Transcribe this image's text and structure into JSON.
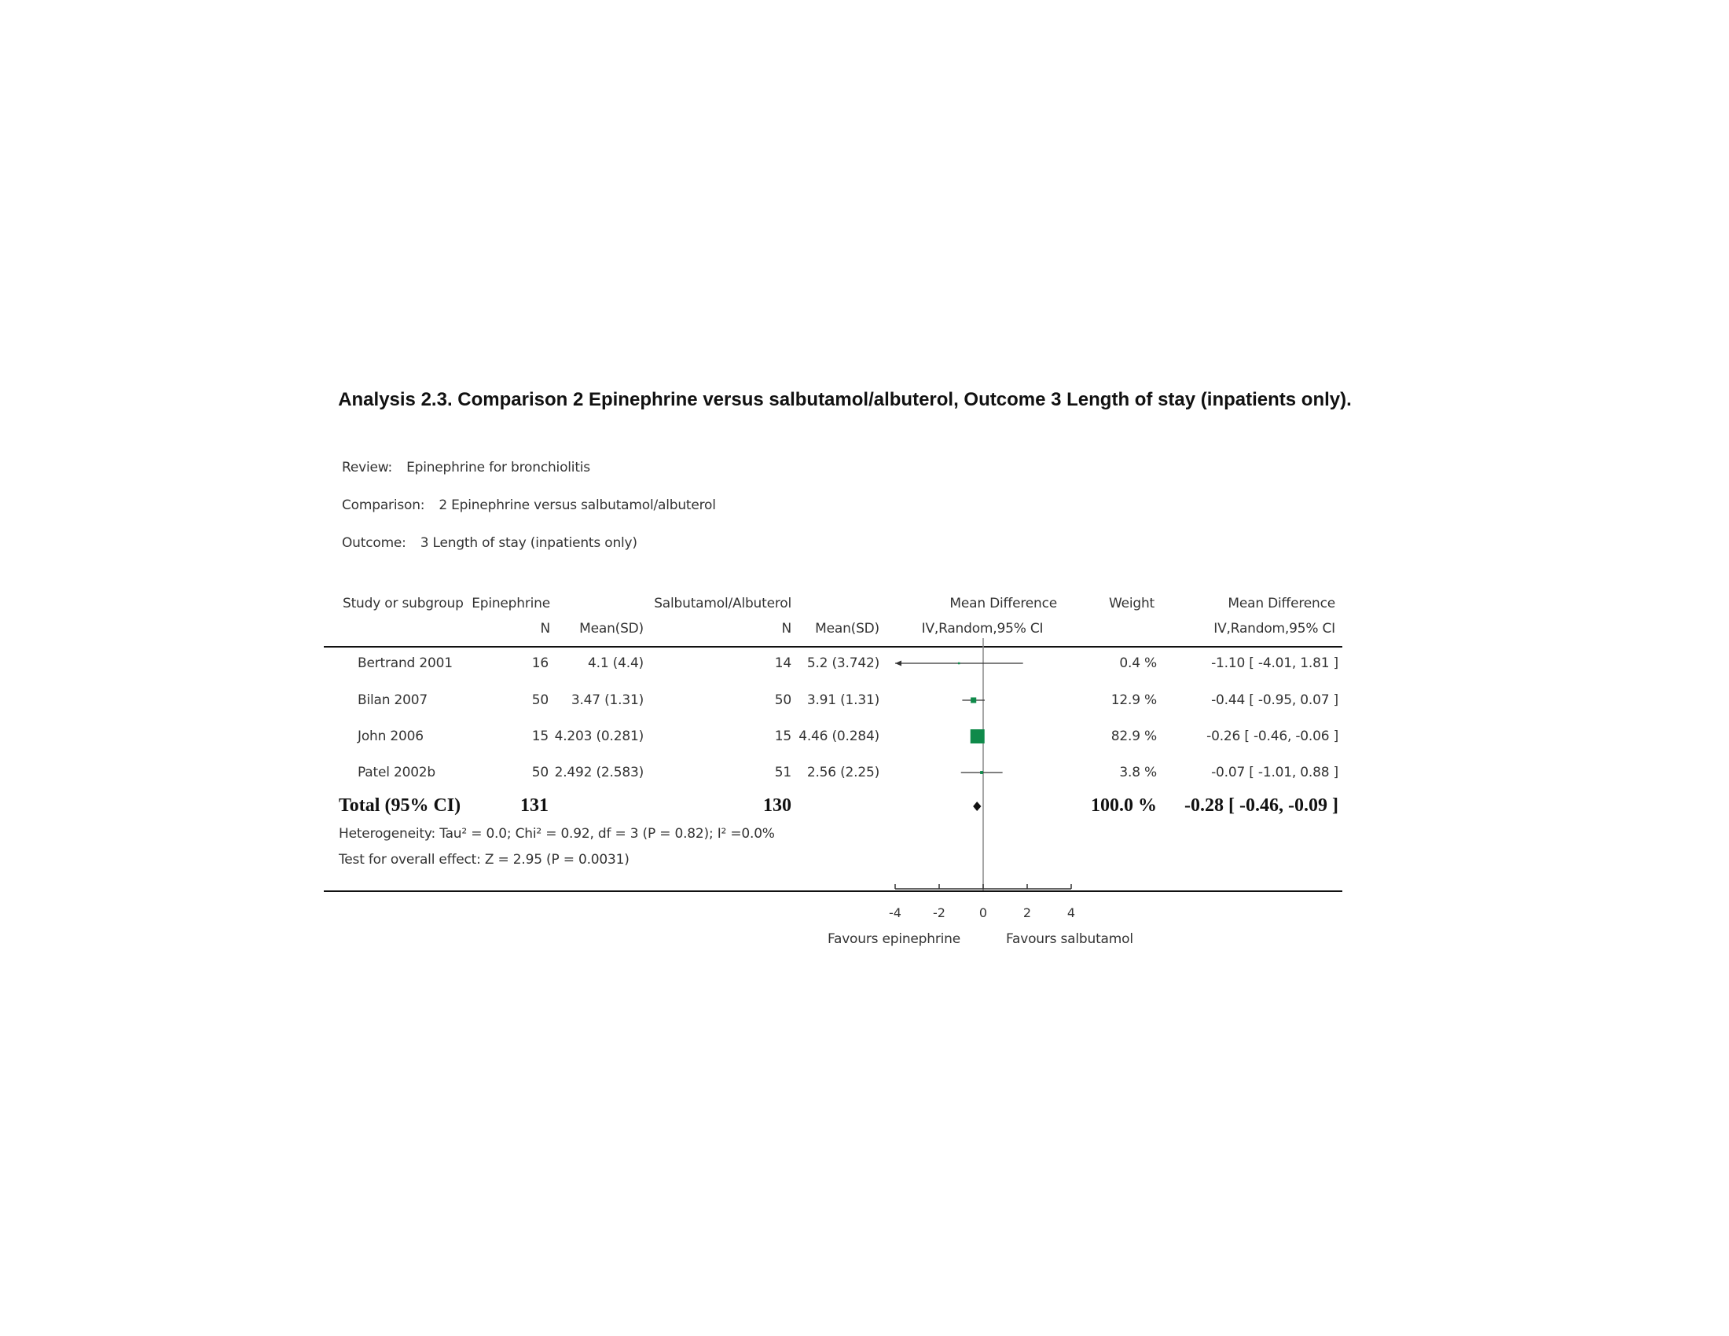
{
  "title": "Analysis 2.3.   Comparison 2 Epinephrine versus salbutamol/albuterol, Outcome 3 Length of stay (inpatients only).",
  "meta": {
    "review_label": "Review:",
    "review_value": "Epinephrine for bronchiolitis",
    "comparison_label": "Comparison:",
    "comparison_value": "2 Epinephrine versus salbutamol/albuterol",
    "outcome_label": "Outcome:",
    "outcome_value": "3 Length of stay (inpatients only)"
  },
  "headers": {
    "study": "Study or subgroup",
    "group1": "Epinephrine",
    "group1_n": "N",
    "group1_mean": "Mean(SD)",
    "group2": "Salbutamol/Albuterol",
    "group2_n": "N",
    "group2_mean": "Mean(SD)",
    "effect": "Mean Difference",
    "effect_method": "IV,Random,95% CI",
    "weight": "Weight",
    "effect2": "Mean Difference",
    "effect2_method": "IV,Random,95% CI"
  },
  "rows": [
    {
      "study": "Bertrand 2001",
      "n1": "16",
      "mean1": "4.1 (4.4)",
      "n2": "14",
      "mean2": "5.2 (3.742)",
      "weight": "0.4 %",
      "ci": "-1.10 [ -4.01, 1.81 ]"
    },
    {
      "study": "Bilan 2007",
      "n1": "50",
      "mean1": "3.47 (1.31)",
      "n2": "50",
      "mean2": "3.91 (1.31)",
      "weight": "12.9 %",
      "ci": "-0.44 [ -0.95, 0.07 ]"
    },
    {
      "study": "John 2006",
      "n1": "15",
      "mean1": "4.203 (0.281)",
      "n2": "15",
      "mean2": "4.46 (0.284)",
      "weight": "82.9 %",
      "ci": "-0.26 [ -0.46, -0.06 ]"
    },
    {
      "study": "Patel 2002b",
      "n1": "50",
      "mean1": "2.492 (2.583)",
      "n2": "51",
      "mean2": "2.56 (2.25)",
      "weight": "3.8 %",
      "ci": "-0.07 [ -1.01, 0.88 ]"
    }
  ],
  "total": {
    "label": "Total (95% CI)",
    "n1": "131",
    "n2": "130",
    "weight": "100.0 %",
    "ci": "-0.28 [ -0.46, -0.09 ]"
  },
  "heterogeneity": "Heterogeneity: Tau² = 0.0; Chi² = 0.92, df = 3 (P = 0.82); I² =0.0%",
  "overall_effect": "Test for overall effect: Z = 2.95 (P = 0.0031)",
  "axis": {
    "favours_left": "Favours epinephrine",
    "favours_right": "Favours salbutamol"
  },
  "colors": {
    "marker": "#0f8a4a",
    "diamond": "#111111",
    "axis": "#333333"
  },
  "chart_data": {
    "type": "forest",
    "xlim": [
      -4,
      4
    ],
    "ticks": [
      -4,
      -2,
      0,
      2,
      4
    ],
    "studies": [
      {
        "name": "Bertrand 2001",
        "md": -1.1,
        "lo": -4.01,
        "hi": 1.81,
        "weight": 0.4
      },
      {
        "name": "Bilan 2007",
        "md": -0.44,
        "lo": -0.95,
        "hi": 0.07,
        "weight": 12.9
      },
      {
        "name": "John 2006",
        "md": -0.26,
        "lo": -0.46,
        "hi": -0.06,
        "weight": 82.9
      },
      {
        "name": "Patel 2002b",
        "md": -0.07,
        "lo": -1.01,
        "hi": 0.88,
        "weight": 3.8
      }
    ],
    "pooled": {
      "md": -0.28,
      "lo": -0.46,
      "hi": -0.09
    }
  }
}
